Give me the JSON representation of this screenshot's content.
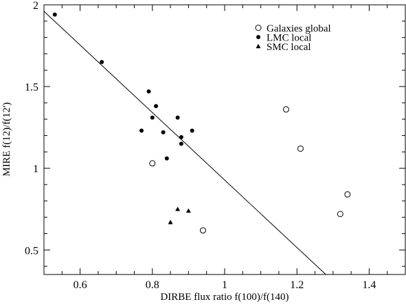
{
  "chart_data": {
    "type": "scatter",
    "xlabel": "DIRBE flux ratio f(100)/f(140)",
    "ylabel": "MIRE f(12)/f(12')",
    "xlim": [
      0.5,
      1.5
    ],
    "ylim": [
      0.35,
      2.0
    ],
    "xticks": [
      0.6,
      0.8,
      1.0,
      1.2,
      1.4
    ],
    "xtick_labels": [
      "0.6",
      "0.8",
      "1",
      "1.2",
      "1.4"
    ],
    "yticks": [
      0.5,
      1.0,
      1.5,
      2.0
    ],
    "ytick_labels": [
      "0.5",
      "1",
      "1.5",
      "2"
    ],
    "grid": false,
    "legend_position": "top-right",
    "series": [
      {
        "name": "Galaxies global",
        "marker": "open-circle",
        "points": [
          [
            0.8,
            1.03
          ],
          [
            0.94,
            0.62
          ],
          [
            1.17,
            1.36
          ],
          [
            1.21,
            1.12
          ],
          [
            1.32,
            0.72
          ],
          [
            1.34,
            0.84
          ]
        ]
      },
      {
        "name": "LMC local",
        "marker": "filled-circle",
        "points": [
          [
            0.53,
            1.94
          ],
          [
            0.66,
            1.65
          ],
          [
            0.77,
            1.23
          ],
          [
            0.79,
            1.47
          ],
          [
            0.8,
            1.31
          ],
          [
            0.81,
            1.38
          ],
          [
            0.83,
            1.22
          ],
          [
            0.84,
            1.06
          ],
          [
            0.87,
            1.31
          ],
          [
            0.88,
            1.19
          ],
          [
            0.88,
            1.15
          ],
          [
            0.91,
            1.23
          ]
        ]
      },
      {
        "name": "SMC local",
        "marker": "filled-triangle",
        "points": [
          [
            0.85,
            0.67
          ],
          [
            0.87,
            0.75
          ],
          [
            0.9,
            0.74
          ]
        ]
      }
    ],
    "fit_line": {
      "points": [
        [
          0.5,
          1.96
        ],
        [
          1.28,
          0.35
        ]
      ]
    }
  }
}
